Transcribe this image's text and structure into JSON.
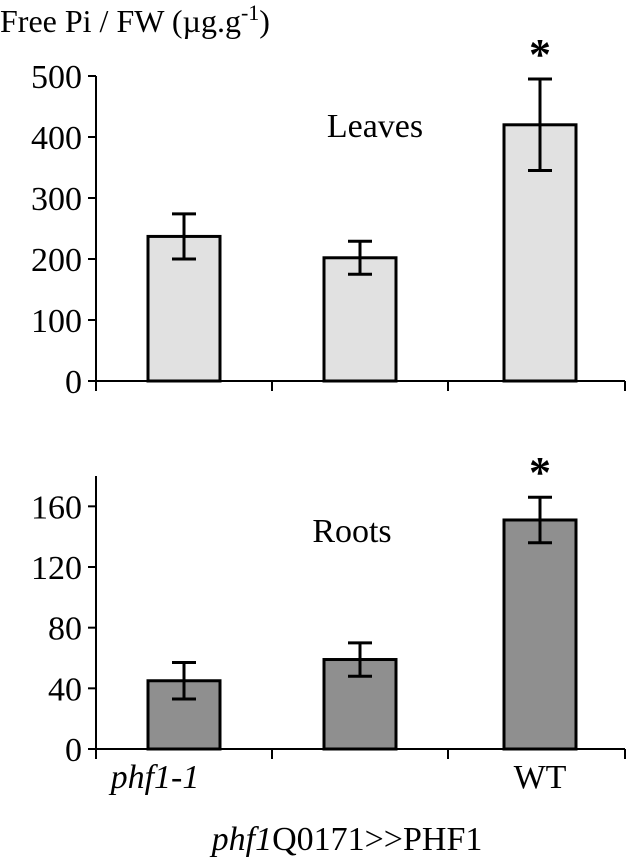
{
  "chart_data": [
    {
      "type": "bar",
      "title": "Free Pi / FW (µg.g-1)",
      "panel_label": "Leaves",
      "categories": [
        "phf1-1",
        "phf1Q0171>>PHF1",
        "WT"
      ],
      "values": [
        237,
        202,
        420
      ],
      "errors": [
        37,
        27,
        75
      ],
      "significance": [
        "",
        "",
        "*"
      ],
      "ylim": [
        0,
        500
      ],
      "yticks": [
        0,
        100,
        200,
        300,
        400,
        500
      ],
      "bar_color": "#e1e1e1"
    },
    {
      "type": "bar",
      "panel_label": "Roots",
      "categories": [
        "phf1-1",
        "phf1Q0171>>PHF1",
        "WT"
      ],
      "values": [
        45,
        59,
        151
      ],
      "errors": [
        12,
        11,
        15
      ],
      "significance": [
        "",
        "",
        "*"
      ],
      "ylim": [
        0,
        180
      ],
      "yticks": [
        0,
        40,
        80,
        120,
        160
      ],
      "bar_color": "#8f8f8f"
    }
  ],
  "title_main": "Free Pi / FW (µg.g",
  "title_sup": "-1",
  "title_close": ")",
  "cat_labels": {
    "c1": "phf1-1",
    "c2_italic": "phf1",
    "c2_rest": "Q0171>>PHF1",
    "c3": "WT"
  }
}
